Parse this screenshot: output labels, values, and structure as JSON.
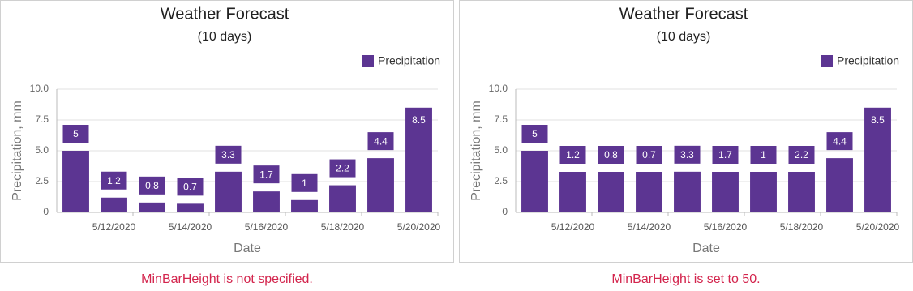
{
  "chart_data": [
    {
      "type": "bar",
      "title": "Weather Forecast",
      "subtitle": "(10 days)",
      "x_label": "Date",
      "y_label": "Precipitation, mm",
      "categories": [
        null,
        "5/12/2020",
        null,
        "5/14/2020",
        null,
        "5/16/2020",
        null,
        "5/18/2020",
        null,
        "5/20/2020"
      ],
      "series": [
        {
          "name": "Precipitation",
          "color": "#5c3592",
          "values": [
            5,
            1.2,
            0.8,
            0.7,
            3.3,
            1.7,
            1,
            2.2,
            4.4,
            8.5
          ]
        }
      ],
      "ylim": [
        0,
        10
      ],
      "yticks": [
        0,
        2.5,
        {
          "value": 5,
          "label": "5.0"
        },
        7.5,
        {
          "value": 10,
          "label": "10.0"
        }
      ],
      "grid": true,
      "legend": "top-right",
      "caption": "MinBarHeight is not specified."
    },
    {
      "type": "bar",
      "title": "Weather Forecast",
      "subtitle": "(10 days)",
      "x_label": "Date",
      "y_label": "Precipitation, mm",
      "categories": [
        null,
        "5/12/2020",
        null,
        "5/14/2020",
        null,
        "5/16/2020",
        null,
        "5/18/2020",
        null,
        "5/20/2020"
      ],
      "series": [
        {
          "name": "Precipitation",
          "color": "#5c3592",
          "values": [
            5,
            1.2,
            0.8,
            0.7,
            3.3,
            1.7,
            1,
            2.2,
            4.4,
            8.5
          ]
        }
      ],
      "ylim": [
        0,
        10
      ],
      "yticks": [
        0,
        2.5,
        {
          "value": 5,
          "label": "5.0"
        },
        7.5,
        {
          "value": 10,
          "label": "10.0"
        }
      ],
      "grid": true,
      "legend": "top-right",
      "min_bar_height": 50,
      "caption": "MinBarHeight is set to 50."
    }
  ]
}
